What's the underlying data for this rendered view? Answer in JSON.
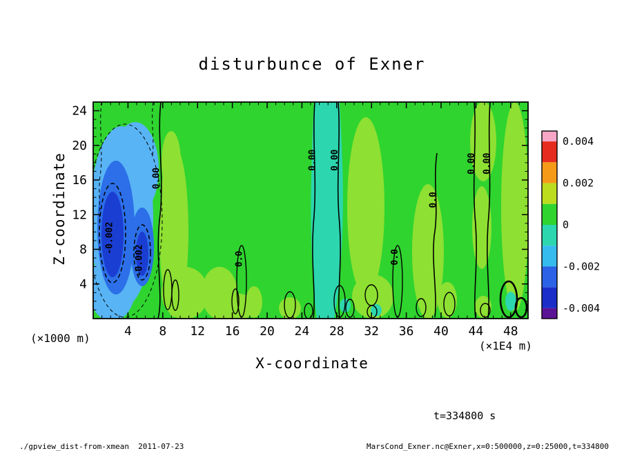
{
  "page": {
    "title": "disturbunce of Exner",
    "x_axis_label": "X-coordinate",
    "y_axis_label": "Z-coordinate",
    "x_unit_label": "(×1E4 m)",
    "y_unit_label": "(×1000 m)",
    "time_label": "t=334800 s",
    "footer_left": "./gpview_dist-from-xmean  2011-07-23",
    "footer_right": "MarsCond_Exner.nc@Exner,x=0:500000,z=0:25000,t=334800"
  },
  "chart_data": {
    "type": "heatmap",
    "subtype": "filled-contour-with-line-contours",
    "title": "disturbunce of Exner",
    "xlabel": "X-coordinate",
    "ylabel": "Z-coordinate",
    "x_unit": "×1E4 m",
    "y_unit": "×1000 m",
    "time": "t=334800 s",
    "xlim": [
      0,
      50
    ],
    "ylim": [
      0,
      25
    ],
    "x_ticks": [
      4,
      8,
      12,
      16,
      20,
      24,
      28,
      32,
      36,
      40,
      44,
      48
    ],
    "y_ticks": [
      4,
      8,
      12,
      16,
      20,
      24
    ],
    "x_minor_step": 1,
    "y_minor_step": 1,
    "grid": false,
    "colorbar": {
      "position": "right",
      "vmin": -0.0045,
      "vmax": 0.0045,
      "tick_values": [
        0.004,
        0.002,
        0,
        -0.002,
        -0.004
      ],
      "tick_labels": [
        "0.004",
        "0.002",
        "0",
        "-0.002",
        "-0.004"
      ],
      "bands": [
        {
          "from": 0.004,
          "to": 0.0045,
          "color": "#F7A6C6"
        },
        {
          "from": 0.003,
          "to": 0.004,
          "color": "#E62C1E"
        },
        {
          "from": 0.002,
          "to": 0.003,
          "color": "#F59A18"
        },
        {
          "from": 0.001,
          "to": 0.002,
          "color": "#BCDC1E"
        },
        {
          "from": 0.0,
          "to": 0.001,
          "color": "#2FD42F"
        },
        {
          "from": -0.001,
          "to": 0.0,
          "color": "#2CD6AE"
        },
        {
          "from": -0.002,
          "to": -0.001,
          "color": "#35BBEE"
        },
        {
          "from": -0.003,
          "to": -0.002,
          "color": "#2C62E6"
        },
        {
          "from": -0.004,
          "to": -0.003,
          "color": "#1B2FC8"
        },
        {
          "from": -0.0045,
          "to": -0.004,
          "color": "#5C1496"
        }
      ]
    },
    "field_palette": {
      "background_green": "#2FD42F",
      "light_green": "#8EE032",
      "teal": "#2CD6AE",
      "light_blue": "#58B4F4",
      "blue": "#2C6FE8",
      "dark_blue": "#1B3ED2",
      "contour_line": "#000000"
    },
    "contour_labels": [
      {
        "text": "-0.002",
        "x": 2.2,
        "z": 9.3,
        "rotation": -90,
        "style": "dashed-negative"
      },
      {
        "text": "-0.002",
        "x": 5.6,
        "z": 6.7,
        "rotation": -90,
        "style": "dashed-negative"
      },
      {
        "text": "0.00",
        "x": 7.6,
        "z": 16.2,
        "rotation": -90,
        "style": "solid-zero"
      },
      {
        "text": "0.0",
        "x": 17.1,
        "z": 6.9,
        "rotation": -90,
        "style": "solid-zero"
      },
      {
        "text": "0.00",
        "x": 25.5,
        "z": 18.3,
        "rotation": -90,
        "style": "solid-zero"
      },
      {
        "text": "0.00",
        "x": 28.1,
        "z": 18.3,
        "rotation": -90,
        "style": "solid-zero"
      },
      {
        "text": "0.0",
        "x": 35.0,
        "z": 7.1,
        "rotation": -90,
        "style": "solid-zero"
      },
      {
        "text": "0.0",
        "x": 39.4,
        "z": 13.7,
        "rotation": -90,
        "style": "solid-zero"
      },
      {
        "text": "0.00",
        "x": 43.8,
        "z": 17.9,
        "rotation": -90,
        "style": "solid-zero"
      },
      {
        "text": "0.00",
        "x": 45.6,
        "z": 17.9,
        "rotation": -90,
        "style": "solid-zero"
      }
    ],
    "features": [
      {
        "kind": "background",
        "value_range": [
          0,
          0.001
        ],
        "color_name": "green",
        "note": "most of the domain sits in the band just above zero"
      },
      {
        "kind": "negative-anomaly",
        "x_range": [
          0.5,
          7.5
        ],
        "z_range": [
          0,
          21
        ],
        "min_value": "below -0.002",
        "cores": [
          {
            "x": 2.2,
            "z_range": [
              3,
              15
            ]
          },
          {
            "x": 5.6,
            "z_range": [
              2.5,
              10
            ]
          }
        ],
        "note": "light-blue/blue/dark-blue nested region at left edge, dashed -0.002 contours around both cores"
      },
      {
        "kind": "weak-negative-stripe",
        "x_range": [
          25.3,
          28.7
        ],
        "z_range": [
          0,
          25
        ],
        "value_range": [
          -0.001,
          0
        ],
        "note": "teal vertical band bounded by two 0.00 contours"
      },
      {
        "kind": "zero-contour",
        "shape": "vertical-line",
        "x": 7.7,
        "z_range": [
          0,
          25
        ]
      },
      {
        "kind": "zero-contour",
        "shape": "vertical-line",
        "x": 25.5,
        "z_range": [
          0,
          25
        ]
      },
      {
        "kind": "zero-contour",
        "shape": "vertical-line",
        "x": 28.2,
        "z_range": [
          0,
          25
        ]
      },
      {
        "kind": "zero-contour",
        "shape": "vertical-line",
        "x": 39.4,
        "z_range": [
          0,
          19
        ]
      },
      {
        "kind": "zero-contour",
        "shape": "vertical-line",
        "x": 43.8,
        "z_range": [
          0,
          25
        ]
      },
      {
        "kind": "zero-contour",
        "shape": "vertical-line",
        "x": 45.6,
        "z_range": [
          0,
          25
        ]
      },
      {
        "kind": "weak-positive-patches",
        "value_range": [
          0.001,
          0.002
        ],
        "x_locations": [
          9,
          14.5,
          18,
          22.5,
          31,
          38.5,
          44.8,
          48.5
        ],
        "note": "light-green columns and blobs, mostly lower half"
      },
      {
        "kind": "small-zero-closed-contours",
        "z_range": [
          0,
          5.5
        ],
        "x_locations": [
          8.6,
          9.4,
          16.3,
          17.1,
          22.6,
          24.8,
          28.3,
          29.5,
          32,
          35,
          37.7,
          41,
          45,
          47.8,
          49.2
        ],
        "note": "many small closed black contours along the bottom boundary; two thick ones near x=48-49"
      }
    ]
  }
}
